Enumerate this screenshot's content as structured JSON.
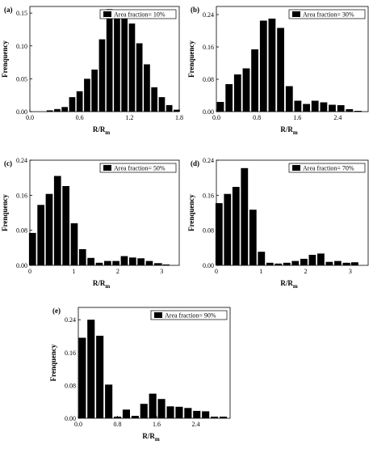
{
  "chart_data": [
    {
      "type": "bar",
      "panel": "(a)",
      "legend": "Area fraction= 10%",
      "ylabel": "Frenquency",
      "xlabel": "R/R",
      "xlabel_sub": "m",
      "xlim": [
        0.0,
        1.8
      ],
      "ylim": [
        0.0,
        0.16
      ],
      "xticks": [
        "0.0",
        "0.6",
        "1.2",
        "1.8"
      ],
      "yticks": [
        "0.00",
        "0.05",
        "0.10",
        "0.15"
      ],
      "x": [
        0.24,
        0.33,
        0.42,
        0.51,
        0.6,
        0.69,
        0.78,
        0.87,
        0.96,
        1.05,
        1.14,
        1.23,
        1.32,
        1.41,
        1.5,
        1.59,
        1.68,
        1.77
      ],
      "values": [
        0.002,
        0.004,
        0.007,
        0.022,
        0.031,
        0.05,
        0.064,
        0.11,
        0.156,
        0.152,
        0.144,
        0.134,
        0.104,
        0.072,
        0.037,
        0.022,
        0.01,
        0.003
      ],
      "bar_width": 0.075
    },
    {
      "type": "bar",
      "panel": "(b)",
      "legend": "Area fraction= 30%",
      "ylabel": "Frenquency",
      "xlabel": "R/R",
      "xlabel_sub": "m",
      "xlim": [
        0.0,
        3.0
      ],
      "ylim": [
        0.0,
        0.26
      ],
      "xticks": [
        "0.0",
        "0.8",
        "1.6",
        "2.4"
      ],
      "yticks": [
        "0.00",
        "0.08",
        "0.16",
        "0.24"
      ],
      "x": [
        0.08,
        0.25,
        0.42,
        0.59,
        0.76,
        0.93,
        1.1,
        1.27,
        1.44,
        1.61,
        1.78,
        1.95,
        2.12,
        2.29,
        2.46,
        2.63,
        2.8
      ],
      "values": [
        0.024,
        0.068,
        0.092,
        0.107,
        0.154,
        0.225,
        0.23,
        0.207,
        0.063,
        0.027,
        0.019,
        0.027,
        0.023,
        0.017,
        0.016,
        0.006,
        0.002
      ],
      "bar_width": 0.14
    },
    {
      "type": "bar",
      "panel": "(c)",
      "legend": "Area fraction= 50%",
      "ylabel": "Frenquency",
      "xlabel": "R/R",
      "xlabel_sub": "m",
      "xlim": [
        0.0,
        3.4
      ],
      "ylim": [
        0.0,
        0.24
      ],
      "xticks": [
        "0",
        "1",
        "2",
        "3"
      ],
      "yticks": [
        "0.00",
        "0.08",
        "0.16",
        "0.24"
      ],
      "x": [
        0.06,
        0.25,
        0.44,
        0.63,
        0.82,
        1.01,
        1.2,
        1.39,
        1.58,
        1.77,
        1.96,
        2.15,
        2.34,
        2.53,
        2.72,
        2.91,
        3.1
      ],
      "values": [
        0.074,
        0.138,
        0.163,
        0.204,
        0.181,
        0.096,
        0.037,
        0.017,
        0.006,
        0.01,
        0.01,
        0.021,
        0.018,
        0.016,
        0.01,
        0.005,
        0.002
      ],
      "bar_width": 0.16
    },
    {
      "type": "bar",
      "panel": "(d)",
      "legend": "Area fraction= 70%",
      "ylabel": "Frenquency",
      "xlabel": "R/R",
      "xlabel_sub": "m",
      "xlim": [
        0.0,
        3.4
      ],
      "ylim": [
        0.0,
        0.24
      ],
      "xticks": [
        "0",
        "1",
        "2",
        "3"
      ],
      "yticks": [
        "0.00",
        "0.08",
        "0.16",
        "0.24"
      ],
      "x": [
        0.06,
        0.25,
        0.44,
        0.63,
        0.82,
        1.01,
        1.2,
        1.39,
        1.58,
        1.77,
        1.96,
        2.15,
        2.34,
        2.53,
        2.72,
        2.91,
        3.1
      ],
      "values": [
        0.142,
        0.163,
        0.179,
        0.222,
        0.127,
        0.031,
        0.006,
        0.004,
        0.006,
        0.01,
        0.015,
        0.024,
        0.027,
        0.008,
        0.01,
        0.006,
        0.007
      ],
      "bar_width": 0.16
    },
    {
      "type": "bar",
      "panel": "(e)",
      "legend": "Area fraction= 90%",
      "ylabel": "Frenquency",
      "xlabel": "R/R",
      "xlabel_sub": "m",
      "xlim": [
        0.0,
        3.1
      ],
      "ylim": [
        0.0,
        0.27
      ],
      "xticks": [
        "0.0",
        "0.8",
        "1.6",
        "2.4"
      ],
      "yticks": [
        "0.00",
        "0.08",
        "0.16",
        "0.24"
      ],
      "x": [
        0.08,
        0.26,
        0.44,
        0.62,
        0.8,
        0.98,
        1.16,
        1.34,
        1.52,
        1.7,
        1.88,
        2.06,
        2.24,
        2.42,
        2.6,
        2.78,
        2.96
      ],
      "values": [
        0.196,
        0.24,
        0.201,
        0.082,
        0.004,
        0.021,
        0.006,
        0.035,
        0.06,
        0.047,
        0.029,
        0.028,
        0.025,
        0.018,
        0.017,
        0.004,
        0.004
      ],
      "bar_width": 0.15
    }
  ]
}
